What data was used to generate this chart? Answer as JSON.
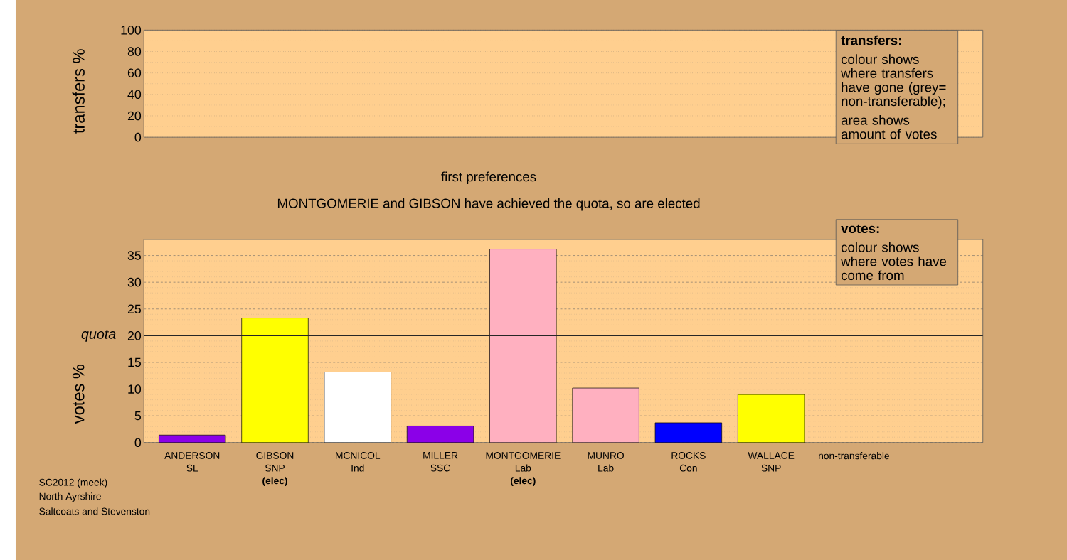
{
  "chart_data": [
    {
      "type": "bar",
      "ylabel": "transfers %",
      "categories": [
        null,
        null,
        null,
        null,
        null,
        null,
        null,
        null,
        null
      ],
      "values": [
        null,
        null,
        null,
        null,
        null,
        null,
        null,
        null,
        null
      ],
      "ylim": [
        0,
        100
      ],
      "yticks": [
        0,
        20,
        40,
        60,
        80,
        100
      ],
      "grid": "y",
      "tick_labels": "y",
      "annotations": [
        "transfers:",
        "colour shows where transfers have gone (grey= non-transferable);",
        "area shows amount of votes"
      ]
    },
    {
      "type": "bar",
      "title": "first preferences",
      "subtitle": "MONTGOMERIE and GIBSON have achieved the quota, so are elected",
      "ylabel": "votes %",
      "categories": [
        "ANDERSON SL",
        "GIBSON SNP **(elec)**",
        "MCNICOL Ind",
        "MILLER SSC",
        "MONTGOMERIE Lab **(elec)**",
        "MUNRO Lab",
        "ROCKS Con",
        "WALLACE SNP",
        "non-transferable"
      ],
      "values": [
        1.4,
        23.3,
        13.2,
        3.1,
        36.2,
        10.2,
        3.7,
        9.0,
        null
      ],
      "colors": [
        "#8b00e8",
        "#ffff00",
        "#ffffff",
        "#8b00e8",
        "#ffb0c0",
        "#ffb0c0",
        "#0000ff",
        "#ffff00",
        null
      ],
      "ylim": [
        0,
        38
      ],
      "yticks": [
        0,
        5,
        10,
        15,
        20,
        25,
        30,
        35
      ],
      "grid": "y",
      "ref_lines": [
        {
          "axis": "y",
          "value": 20,
          "label": "quota"
        }
      ],
      "annotations": [
        "votes:",
        "colour shows where votes have come from",
        "SC2012 (meek)",
        "North Ayrshire",
        "Saltcoats and Stevenston"
      ]
    }
  ]
}
